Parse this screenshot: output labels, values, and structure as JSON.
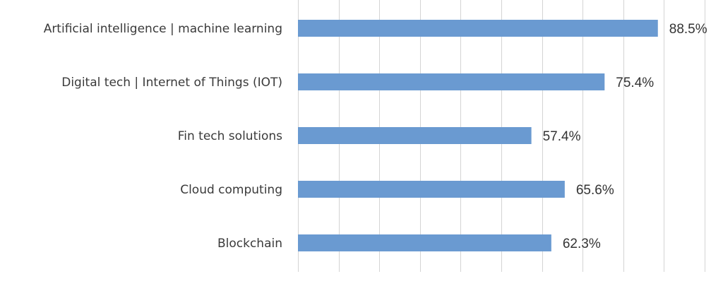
{
  "chart_data": {
    "type": "bar",
    "orientation": "horizontal",
    "categories": [
      "Artificial intelligence | machine learning",
      "Digital tech | Internet of Things (IOT)",
      "Fin tech solutions",
      "Cloud computing",
      "Blockchain"
    ],
    "values": [
      88.5,
      75.4,
      57.4,
      65.6,
      62.3
    ],
    "value_labels": [
      "88.5%",
      "75.4%",
      "57.4%",
      "65.6%",
      "62.3%"
    ],
    "title": "",
    "xlabel": "",
    "ylabel": "",
    "xlim": [
      0,
      100
    ],
    "grid": true,
    "legend": "none",
    "bar_color": "#6a9ad1"
  }
}
